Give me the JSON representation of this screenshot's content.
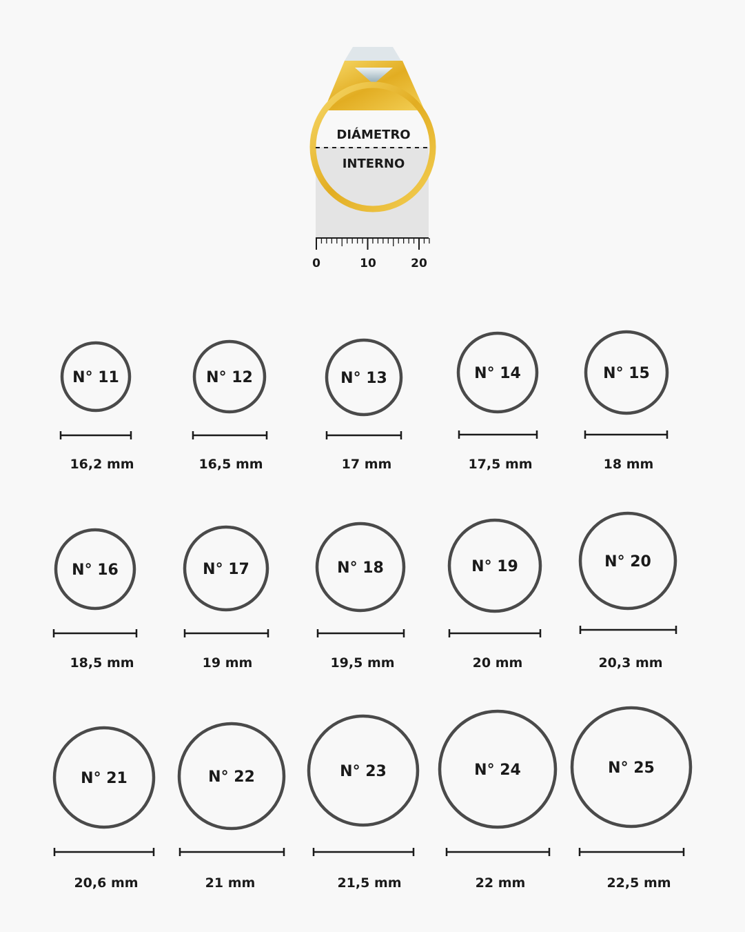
{
  "illustration": {
    "label_top": "DIÁMETRO",
    "label_bottom": "INTERNO",
    "ruler_labels": [
      "0",
      "10",
      "20"
    ],
    "ring_color": "#e9b92f",
    "gem_color": "#b8c8d0"
  },
  "colors": {
    "background": "#f8f8f8",
    "circle_stroke": "#4a4a4a",
    "text": "#1a1a1a"
  },
  "sizes": [
    {
      "label": "N° 11",
      "diameter": "16,2 mm"
    },
    {
      "label": "N° 12",
      "diameter": "16,5 mm"
    },
    {
      "label": "N° 13",
      "diameter": "17 mm"
    },
    {
      "label": "N° 14",
      "diameter": "17,5 mm"
    },
    {
      "label": "N° 15",
      "diameter": "18 mm"
    },
    {
      "label": "N° 16",
      "diameter": "18,5 mm"
    },
    {
      "label": "N° 17",
      "diameter": "19 mm"
    },
    {
      "label": "N° 18",
      "diameter": "19,5 mm"
    },
    {
      "label": "N° 19",
      "diameter": "20 mm"
    },
    {
      "label": "N° 20",
      "diameter": "20,3 mm"
    },
    {
      "label": "N° 21",
      "diameter": "20,6 mm"
    },
    {
      "label": "N° 22",
      "diameter": "21 mm"
    },
    {
      "label": "N° 23",
      "diameter": "21,5 mm"
    },
    {
      "label": "N° 24",
      "diameter": "22 mm"
    },
    {
      "label": "N° 25",
      "diameter": "22,5 mm"
    }
  ]
}
